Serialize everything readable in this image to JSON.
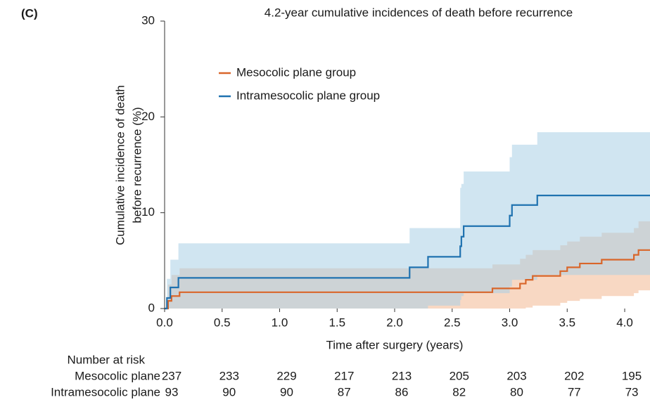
{
  "chart_data": {
    "type": "step",
    "panel_label": "(C)",
    "title": "4.2-year cumulative incidences of death before recurrence",
    "ylabel": [
      "Cumulative incidence of death",
      "before recurrence (%)"
    ],
    "xlabel": "Time after surgery (years)",
    "xlim": [
      0,
      4.22
    ],
    "ylim": [
      0,
      30
    ],
    "xticks": [
      {
        "value": 0,
        "label": "0.0"
      },
      0.5,
      {
        "value": 1,
        "label": "1.0"
      },
      1.5,
      {
        "value": 2,
        "label": "2.0"
      },
      2.5,
      {
        "value": 3,
        "label": "3.0"
      },
      3.5,
      {
        "value": 4,
        "label": "4.0"
      }
    ],
    "yticks": [
      0,
      10,
      20,
      30
    ],
    "series": [
      {
        "name": "Mesocolic plane group",
        "color": "#d9662a",
        "band_color": "#f2b892",
        "x": [
          0,
          0.03,
          0.06,
          0.13,
          2.85,
          3.09,
          3.14,
          3.2,
          3.44,
          3.5,
          3.61,
          3.8,
          4.08,
          4.12,
          4.22
        ],
        "values": [
          0,
          0.8,
          1.3,
          1.7,
          2.1,
          2.6,
          3.0,
          3.4,
          3.9,
          4.3,
          4.7,
          5.1,
          5.6,
          6.1,
          6.1
        ],
        "upper": [
          0,
          2.5,
          3.5,
          4.2,
          4.6,
          5.2,
          5.6,
          6.1,
          6.6,
          7.0,
          7.5,
          7.9,
          8.4,
          9.1,
          9.1
        ],
        "lower": [
          0,
          0,
          0,
          0,
          0,
          0,
          0.1,
          0.3,
          0.6,
          0.8,
          1.0,
          1.3,
          1.6,
          1.9,
          1.9
        ]
      },
      {
        "name": "Intramesocolic plane group",
        "color": "#1f72b0",
        "band_color": "#a9cfe6",
        "x": [
          0,
          0.02,
          0.05,
          0.12,
          2.13,
          2.29,
          2.57,
          2.58,
          2.6,
          3.0,
          3.02,
          3.24,
          4.22
        ],
        "values": [
          0,
          1.1,
          2.2,
          3.2,
          4.3,
          5.4,
          6.5,
          7.5,
          8.6,
          9.7,
          10.8,
          11.8,
          11.8
        ],
        "upper": [
          0,
          3.1,
          5.1,
          6.8,
          8.4,
          8.4,
          12.6,
          13.0,
          14.3,
          15.8,
          17.1,
          18.4,
          18.4
        ],
        "lower": [
          0,
          0,
          0,
          0,
          0,
          0.3,
          0.9,
          1.3,
          1.6,
          2.3,
          3.0,
          3.5,
          3.5
        ]
      }
    ],
    "risk_table": {
      "title": "Number at risk",
      "rows": [
        {
          "label": "Mesocolic plane",
          "values": [
            237,
            233,
            229,
            217,
            213,
            205,
            203,
            202,
            195
          ]
        },
        {
          "label": "Intramesocolic plane",
          "values": [
            93,
            90,
            90,
            87,
            86,
            82,
            80,
            77,
            73
          ]
        }
      ]
    }
  }
}
